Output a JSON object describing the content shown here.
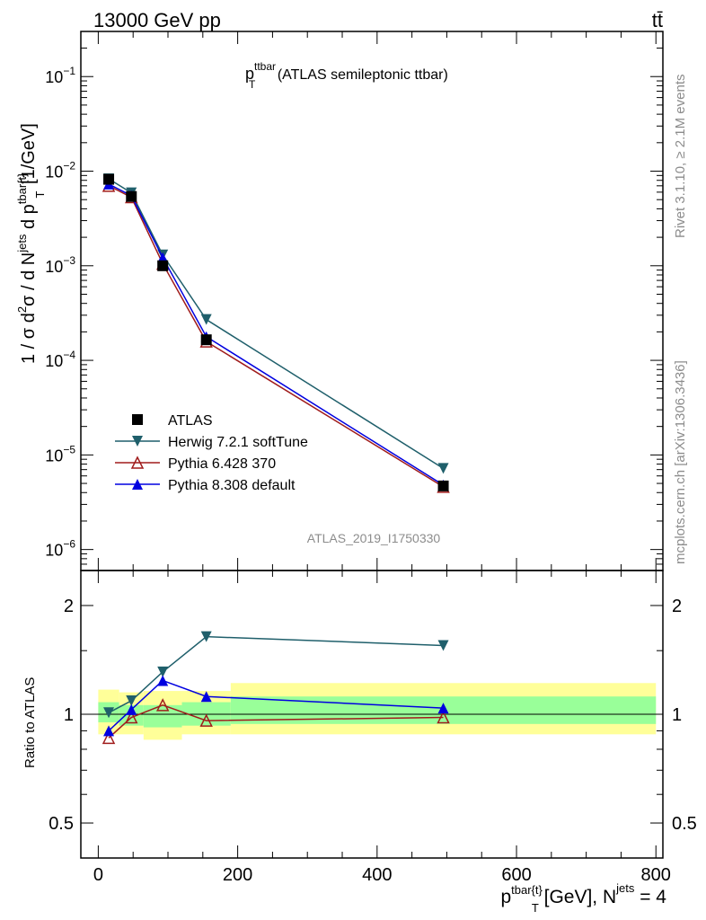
{
  "header": {
    "left": "13000 GeV pp",
    "right": "tt̄"
  },
  "side": {
    "rivet": "Rivet 3.1.10, ≥ 2.1M events",
    "mcplots": "mcplots.cern.ch [arXiv:1306.3436]"
  },
  "analysis_tag": "ATLAS_2019_I1750330",
  "chart_data": [
    {
      "type": "line",
      "title": {
        "main": "p",
        "sup": "ttbar",
        "sub": "T",
        "rest": " (ATLAS semileptonic ttbar)"
      },
      "ylabel": {
        "a": "1 / σ d",
        "sup1": "2",
        "b": "σ / d N",
        "sup2": "jets",
        "c": " d p",
        "sup3": "tbar{t}",
        "sub3": "T",
        "d": " [1/GeV]"
      },
      "yscale": "log",
      "ylim": [
        6e-07,
        0.3
      ],
      "xlim": [
        -25,
        810
      ],
      "yticks": [
        {
          "v": 1e-06,
          "base": "10",
          "exp": "−6"
        },
        {
          "v": 1e-05,
          "base": "10",
          "exp": "−5"
        },
        {
          "v": 0.0001,
          "base": "10",
          "exp": "−4"
        },
        {
          "v": 0.001,
          "base": "10",
          "exp": "−3"
        },
        {
          "v": 0.01,
          "base": "10",
          "exp": "−2"
        },
        {
          "v": 0.1,
          "base": "10",
          "exp": "−1"
        }
      ],
      "legend_position": "lower-left",
      "series": [
        {
          "name": "ATLAS",
          "color": "#000000",
          "marker": "square",
          "line": false,
          "x": [
            15,
            47.5,
            92.5,
            155,
            495
          ],
          "y": [
            0.0082,
            0.0054,
            0.001,
            0.000165,
            4.7e-06
          ]
        },
        {
          "name": "Herwig 7.2.1 softTune",
          "color": "#1f5f6b",
          "marker": "tri-down",
          "line": true,
          "x": [
            15,
            47.5,
            92.5,
            155,
            495
          ],
          "y": [
            0.0083,
            0.0059,
            0.0013,
            0.00027,
            7.2e-06
          ]
        },
        {
          "name": "Pythia 6.428 370",
          "color": "#a01c1c",
          "marker": "tri-up-open",
          "line": true,
          "x": [
            15,
            47.5,
            92.5,
            155,
            495
          ],
          "y": [
            0.007,
            0.0053,
            0.00105,
            0.000158,
            4.6e-06
          ]
        },
        {
          "name": "Pythia 8.308 default",
          "color": "#0000e0",
          "marker": "tri-up",
          "line": true,
          "x": [
            15,
            47.5,
            92.5,
            155,
            495
          ],
          "y": [
            0.0073,
            0.0055,
            0.00122,
            0.000178,
            4.8e-06
          ]
        }
      ]
    },
    {
      "type": "line",
      "ylabel": "Ratio to ATLAS",
      "xlabel": {
        "a": "p",
        "sup1": "tbar{t}",
        "sub1": "T",
        "b": " [GeV], N",
        "sup2": "jets",
        "c": " = 4"
      },
      "yscale": "log",
      "ylim": [
        0.4,
        2.5
      ],
      "xlim": [
        -25,
        810
      ],
      "yticks": [
        {
          "v": 0.5,
          "label": "0.5"
        },
        {
          "v": 1,
          "label": "1"
        },
        {
          "v": 2,
          "label": "2"
        }
      ],
      "xticks": [
        {
          "v": 0,
          "label": "0"
        },
        {
          "v": 200,
          "label": "200"
        },
        {
          "v": 400,
          "label": "400"
        },
        {
          "v": 600,
          "label": "600"
        },
        {
          "v": 800,
          "label": "800"
        }
      ],
      "bands": {
        "bins": [
          [
            0,
            30
          ],
          [
            30,
            65
          ],
          [
            65,
            120
          ],
          [
            120,
            190
          ],
          [
            190,
            800
          ]
        ],
        "yellow": [
          [
            0.88,
            1.17
          ],
          [
            0.88,
            1.15
          ],
          [
            0.85,
            1.16
          ],
          [
            0.88,
            1.16
          ],
          [
            0.88,
            1.22
          ]
        ],
        "green": [
          [
            0.95,
            1.08
          ],
          [
            0.93,
            1.06
          ],
          [
            0.92,
            1.06
          ],
          [
            0.93,
            1.08
          ],
          [
            0.94,
            1.12
          ]
        ],
        "yellow_color": "#ffff99",
        "green_color": "#99ff99"
      },
      "series": [
        {
          "name": "Herwig 7.2.1 softTune",
          "color": "#1f5f6b",
          "marker": "tri-down",
          "x": [
            15,
            47.5,
            92.5,
            155,
            495
          ],
          "y": [
            1.01,
            1.09,
            1.31,
            1.64,
            1.55
          ]
        },
        {
          "name": "Pythia 6.428 370",
          "color": "#a01c1c",
          "marker": "tri-up-open",
          "x": [
            15,
            47.5,
            92.5,
            155,
            495
          ],
          "y": [
            0.86,
            0.98,
            1.06,
            0.96,
            0.98
          ]
        },
        {
          "name": "Pythia 8.308 default",
          "color": "#0000e0",
          "marker": "tri-up",
          "x": [
            15,
            47.5,
            92.5,
            155,
            495
          ],
          "y": [
            0.9,
            1.03,
            1.24,
            1.12,
            1.04
          ]
        }
      ]
    }
  ]
}
